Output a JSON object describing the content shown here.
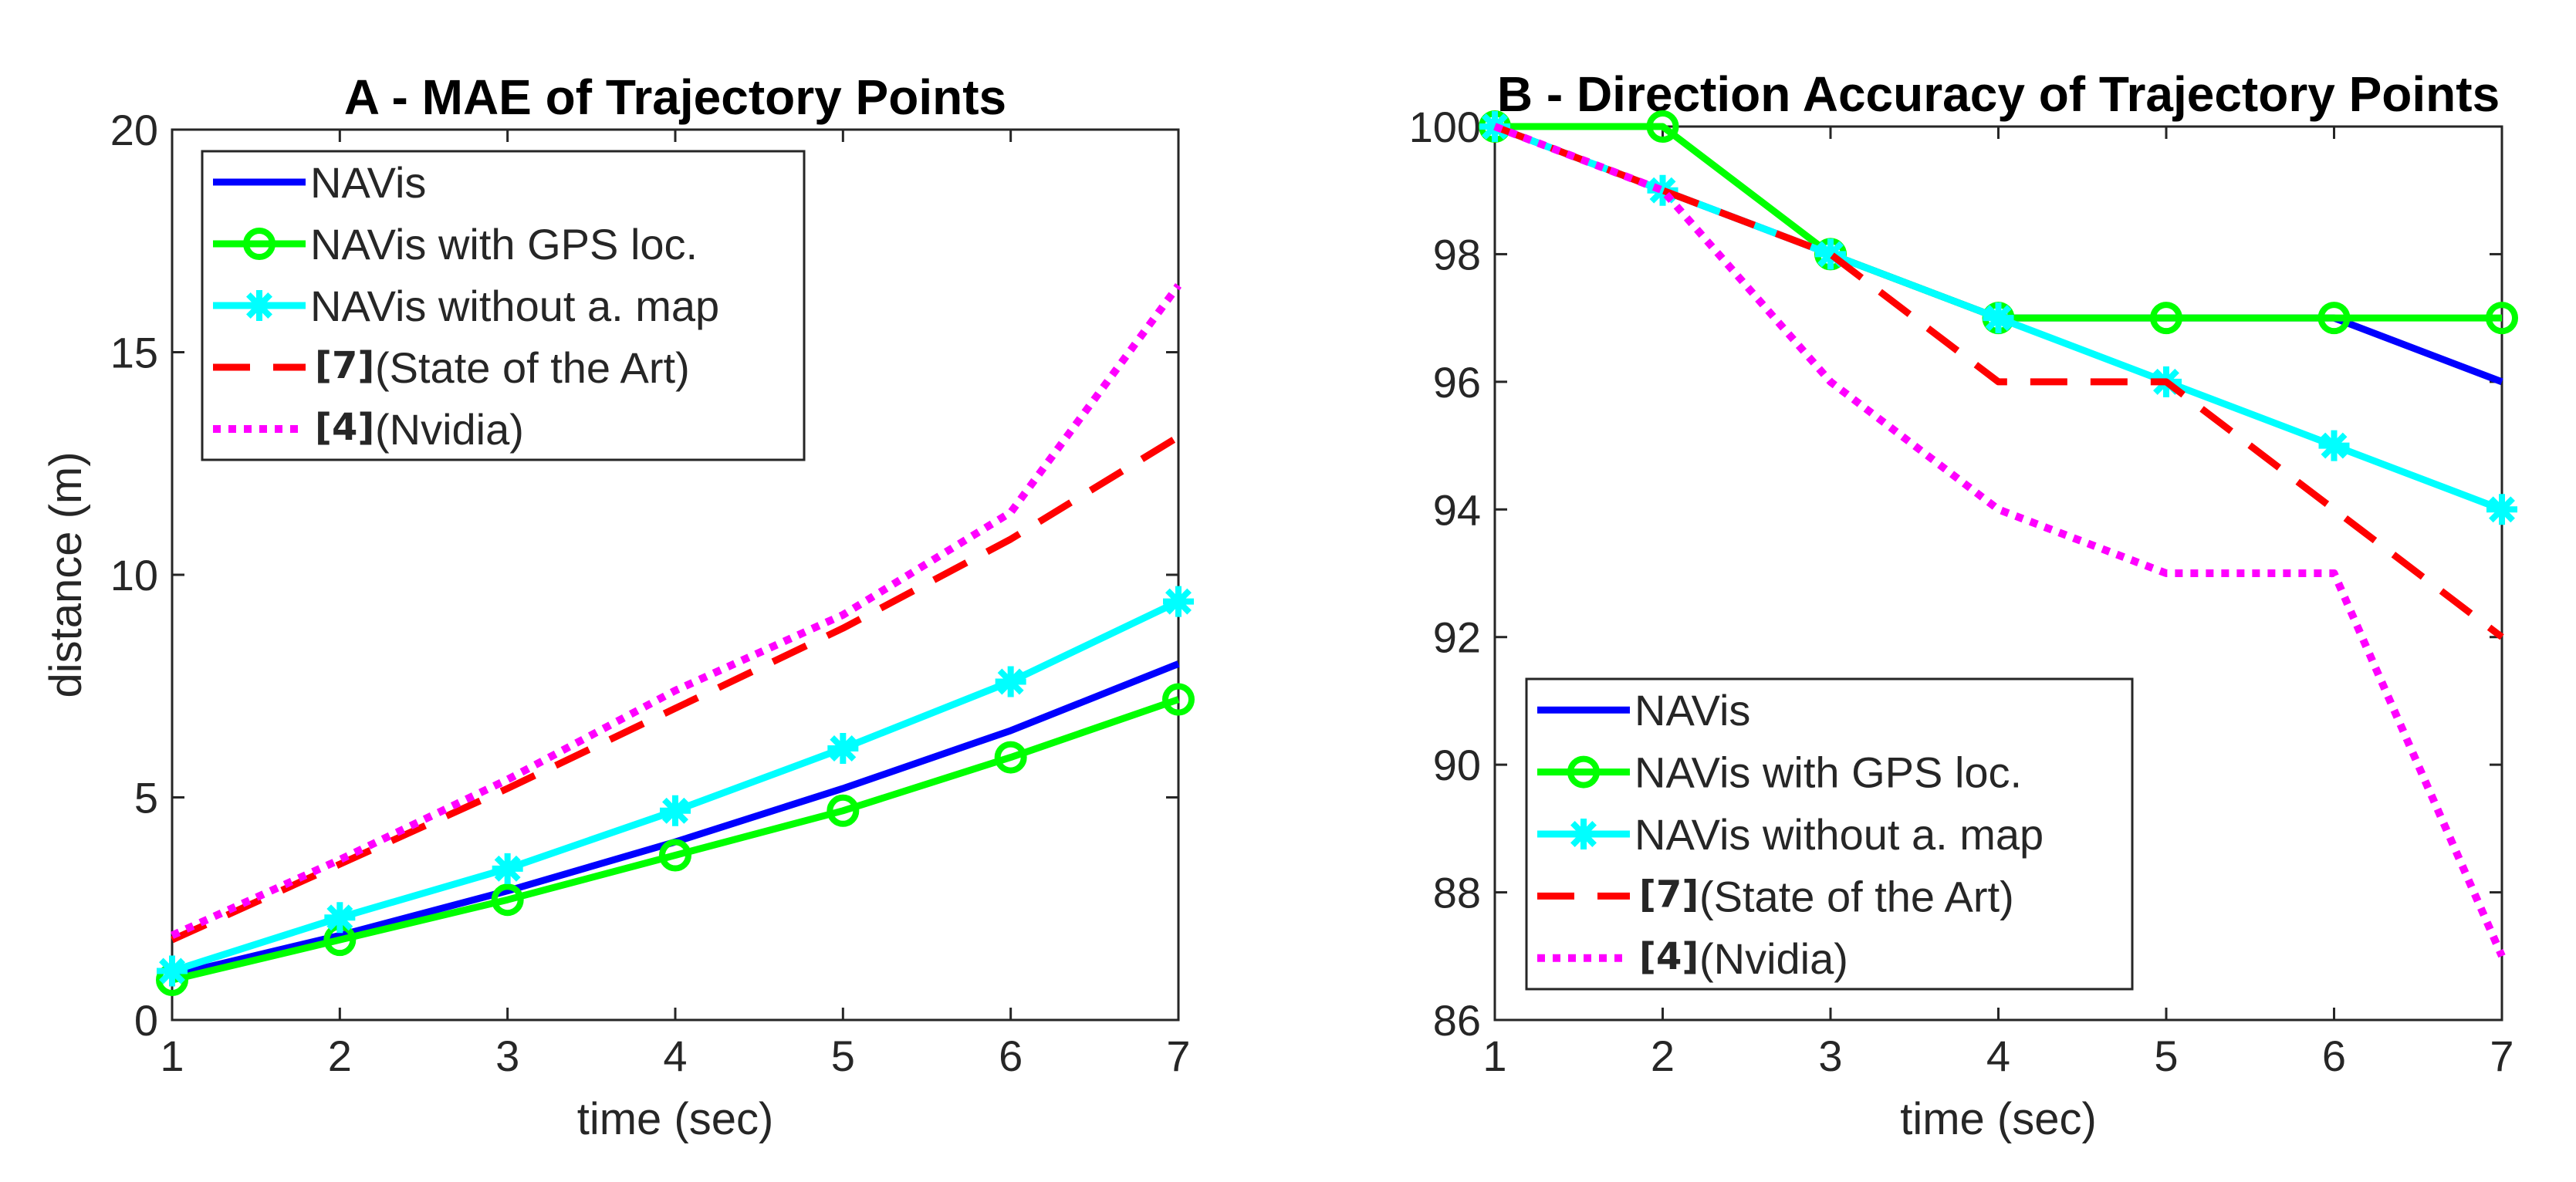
{
  "chart_data": [
    {
      "type": "line",
      "title": "A - MAE of Trajectory Points",
      "xlabel": "time (sec)",
      "ylabel": "distance (m)",
      "xlim": [
        1,
        7
      ],
      "ylim": [
        0,
        20
      ],
      "xticks": [
        1,
        2,
        3,
        4,
        5,
        6,
        7
      ],
      "yticks": [
        0,
        5,
        10,
        15,
        20
      ],
      "legend_position": "top-left",
      "x": [
        1,
        2,
        3,
        4,
        5,
        6,
        7
      ],
      "series": [
        {
          "name": "NAVis",
          "ref": "",
          "values": [
            1.0,
            1.9,
            2.9,
            4.0,
            5.2,
            6.5,
            8.0
          ],
          "color": "#0000ff",
          "style": "solid",
          "marker": "none"
        },
        {
          "name": "NAVis with GPS loc.",
          "ref": "",
          "values": [
            0.9,
            1.8,
            2.7,
            3.7,
            4.7,
            5.9,
            7.2
          ],
          "color": "#00ff00",
          "style": "solid",
          "marker": "circle"
        },
        {
          "name": "NAVis without a. map",
          "ref": "",
          "values": [
            1.1,
            2.3,
            3.4,
            4.7,
            6.1,
            7.6,
            9.4
          ],
          "color": "#00ffff",
          "style": "solid",
          "marker": "star"
        },
        {
          "name": "(State of the Art)",
          "ref": "[7]",
          "values": [
            1.8,
            3.5,
            5.2,
            7.0,
            8.8,
            10.8,
            13.1
          ],
          "color": "#ff0000",
          "style": "dashed",
          "marker": "none"
        },
        {
          "name": "(Nvidia)",
          "ref": "[4]",
          "values": [
            1.9,
            3.6,
            5.4,
            7.4,
            9.1,
            11.4,
            16.5
          ],
          "color": "#ff00ff",
          "style": "dotted",
          "marker": "none"
        }
      ]
    },
    {
      "type": "line",
      "title": "B - Direction Accuracy of Trajectory Points",
      "xlabel": "time (sec)",
      "ylabel": "",
      "xlim": [
        1,
        7
      ],
      "ylim": [
        86,
        100
      ],
      "xticks": [
        1,
        2,
        3,
        4,
        5,
        6,
        7
      ],
      "yticks": [
        86,
        88,
        90,
        92,
        94,
        96,
        98,
        100
      ],
      "legend_position": "bottom-left",
      "x": [
        1,
        2,
        3,
        4,
        5,
        6,
        7
      ],
      "series": [
        {
          "name": "NAVis",
          "ref": "",
          "values": [
            100,
            99,
            98,
            97,
            97,
            97,
            96
          ],
          "color": "#0000ff",
          "style": "solid",
          "marker": "none"
        },
        {
          "name": "NAVis with GPS loc.",
          "ref": "",
          "values": [
            100,
            100,
            98,
            97,
            97,
            97,
            97
          ],
          "color": "#00ff00",
          "style": "solid",
          "marker": "circle"
        },
        {
          "name": "NAVis without a. map",
          "ref": "",
          "values": [
            100,
            99,
            98,
            97,
            96,
            95,
            94
          ],
          "color": "#00ffff",
          "style": "solid",
          "marker": "star"
        },
        {
          "name": "(State of the Art)",
          "ref": "[7]",
          "values": [
            100,
            99,
            98,
            96,
            96,
            94,
            92
          ],
          "color": "#ff0000",
          "style": "dashed",
          "marker": "none"
        },
        {
          "name": "(Nvidia)",
          "ref": "[4]",
          "values": [
            100,
            99,
            96,
            94,
            93,
            93,
            87
          ],
          "color": "#ff00ff",
          "style": "dotted",
          "marker": "none"
        }
      ]
    }
  ]
}
